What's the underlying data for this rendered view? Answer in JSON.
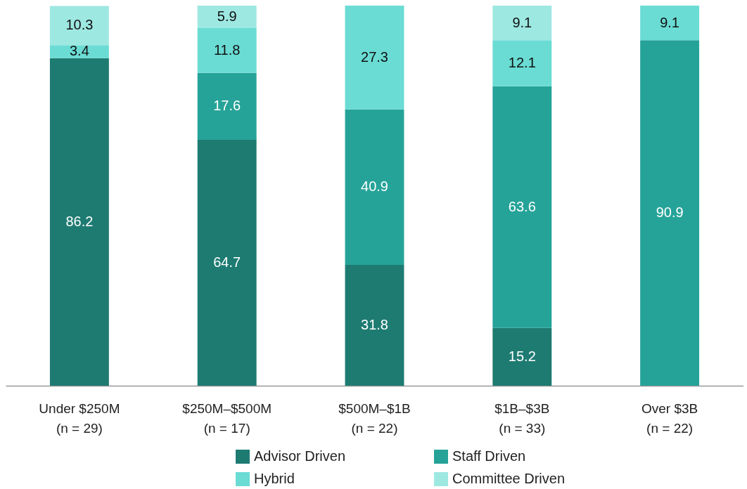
{
  "chart_data": {
    "type": "bar",
    "stacked": true,
    "data_labels": true,
    "legend": "bottom",
    "categories": [
      "Under $250M\n(n = 29)",
      "$250M–$500M\n(n = 17)",
      "$500M–$1B\n(n = 22)",
      "$1B–$3B\n(n = 33)",
      "Over $3B\n(n = 22)"
    ],
    "series": [
      {
        "name": "Advisor Driven",
        "color": "#1e7b72",
        "values": [
          86.2,
          64.7,
          31.8,
          15.2,
          null
        ]
      },
      {
        "name": "Staff Driven",
        "color": "#26a398",
        "values": [
          null,
          17.6,
          40.9,
          63.6,
          90.9
        ]
      },
      {
        "name": "Hybrid",
        "color": "#6adcd4",
        "values": [
          3.4,
          11.8,
          27.3,
          12.1,
          9.1
        ]
      },
      {
        "name": "Committee Driven",
        "color": "#9ee8e2",
        "values": [
          10.3,
          5.9,
          null,
          9.1,
          null
        ]
      }
    ]
  }
}
